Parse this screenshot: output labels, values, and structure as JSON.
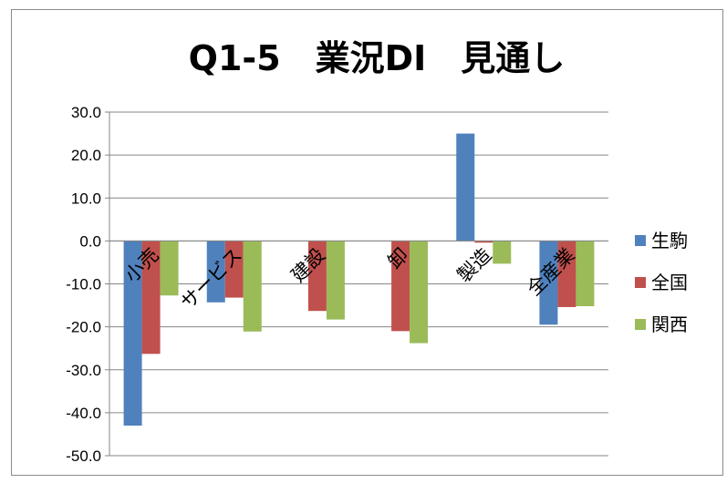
{
  "chart_data": {
    "type": "bar",
    "title": "Q1-5　業況DI　見通し",
    "categories": [
      "小売",
      "サービス",
      "建設",
      "卸",
      "製造",
      "全産業"
    ],
    "series": [
      {
        "name": "生駒",
        "color": "#4F81BD",
        "values": [
          -43.0,
          -14.3,
          0.0,
          0.0,
          25.0,
          -19.5
        ]
      },
      {
        "name": "全国",
        "color": "#C0504D",
        "values": [
          -26.3,
          -13.2,
          -16.3,
          -21.0,
          -0.4,
          -15.4
        ]
      },
      {
        "name": "関西",
        "color": "#9BBB59",
        "values": [
          -12.7,
          -21.1,
          -18.3,
          -23.8,
          -5.3,
          -15.2
        ]
      }
    ],
    "ylim": [
      -50,
      30
    ],
    "y_ticks": [
      "30.0",
      "20.0",
      "10.0",
      "0.0",
      "-10.0",
      "-20.0",
      "-30.0",
      "-40.0",
      "-50.0"
    ],
    "y_tick_values": [
      30,
      20,
      10,
      0,
      -10,
      -20,
      -30,
      -40,
      -50
    ],
    "grid": true,
    "legend_position": "right",
    "xlabel": "",
    "ylabel": ""
  }
}
